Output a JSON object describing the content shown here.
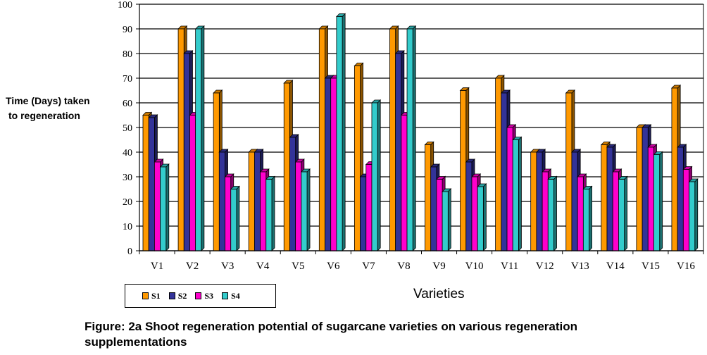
{
  "chart_data": {
    "type": "bar",
    "title": "",
    "ylabel_line1": "Time (Days) taken",
    "ylabel_line2": "to regeneration",
    "xlabel": "Varieties",
    "ylim": [
      0,
      100
    ],
    "yticks": [
      0,
      10,
      20,
      30,
      40,
      50,
      60,
      70,
      80,
      90,
      100
    ],
    "grid": true,
    "legend_position": "bottom-left",
    "categories": [
      "V1",
      "V2",
      "V3",
      "V4",
      "V5",
      "V6",
      "V7",
      "V8",
      "V9",
      "V10",
      "V11",
      "V12",
      "V13",
      "V14",
      "V15",
      "V16"
    ],
    "series": [
      {
        "name": "S1",
        "color": "#FF9900",
        "values": [
          55,
          90,
          64,
          40,
          68,
          90,
          75,
          90,
          43,
          65,
          70,
          40,
          64,
          43,
          50,
          66
        ]
      },
      {
        "name": "S2",
        "color": "#333399",
        "values": [
          54,
          80,
          40,
          40,
          46,
          70,
          30,
          80,
          34,
          36,
          64,
          40,
          40,
          42,
          50,
          42
        ]
      },
      {
        "name": "S3",
        "color": "#FF00CC",
        "values": [
          36,
          55,
          30,
          32,
          36,
          70,
          35,
          55,
          29,
          30,
          50,
          32,
          30,
          32,
          42,
          33
        ]
      },
      {
        "name": "S4",
        "color": "#33CCCC",
        "values": [
          34,
          90,
          25,
          29,
          32,
          95,
          60,
          90,
          24,
          26,
          45,
          29,
          25,
          29,
          39,
          28
        ]
      }
    ]
  },
  "caption_line1": "Figure: 2a Shoot regeneration potential of sugarcane varieties on various regeneration",
  "caption_line2": "supplementations"
}
